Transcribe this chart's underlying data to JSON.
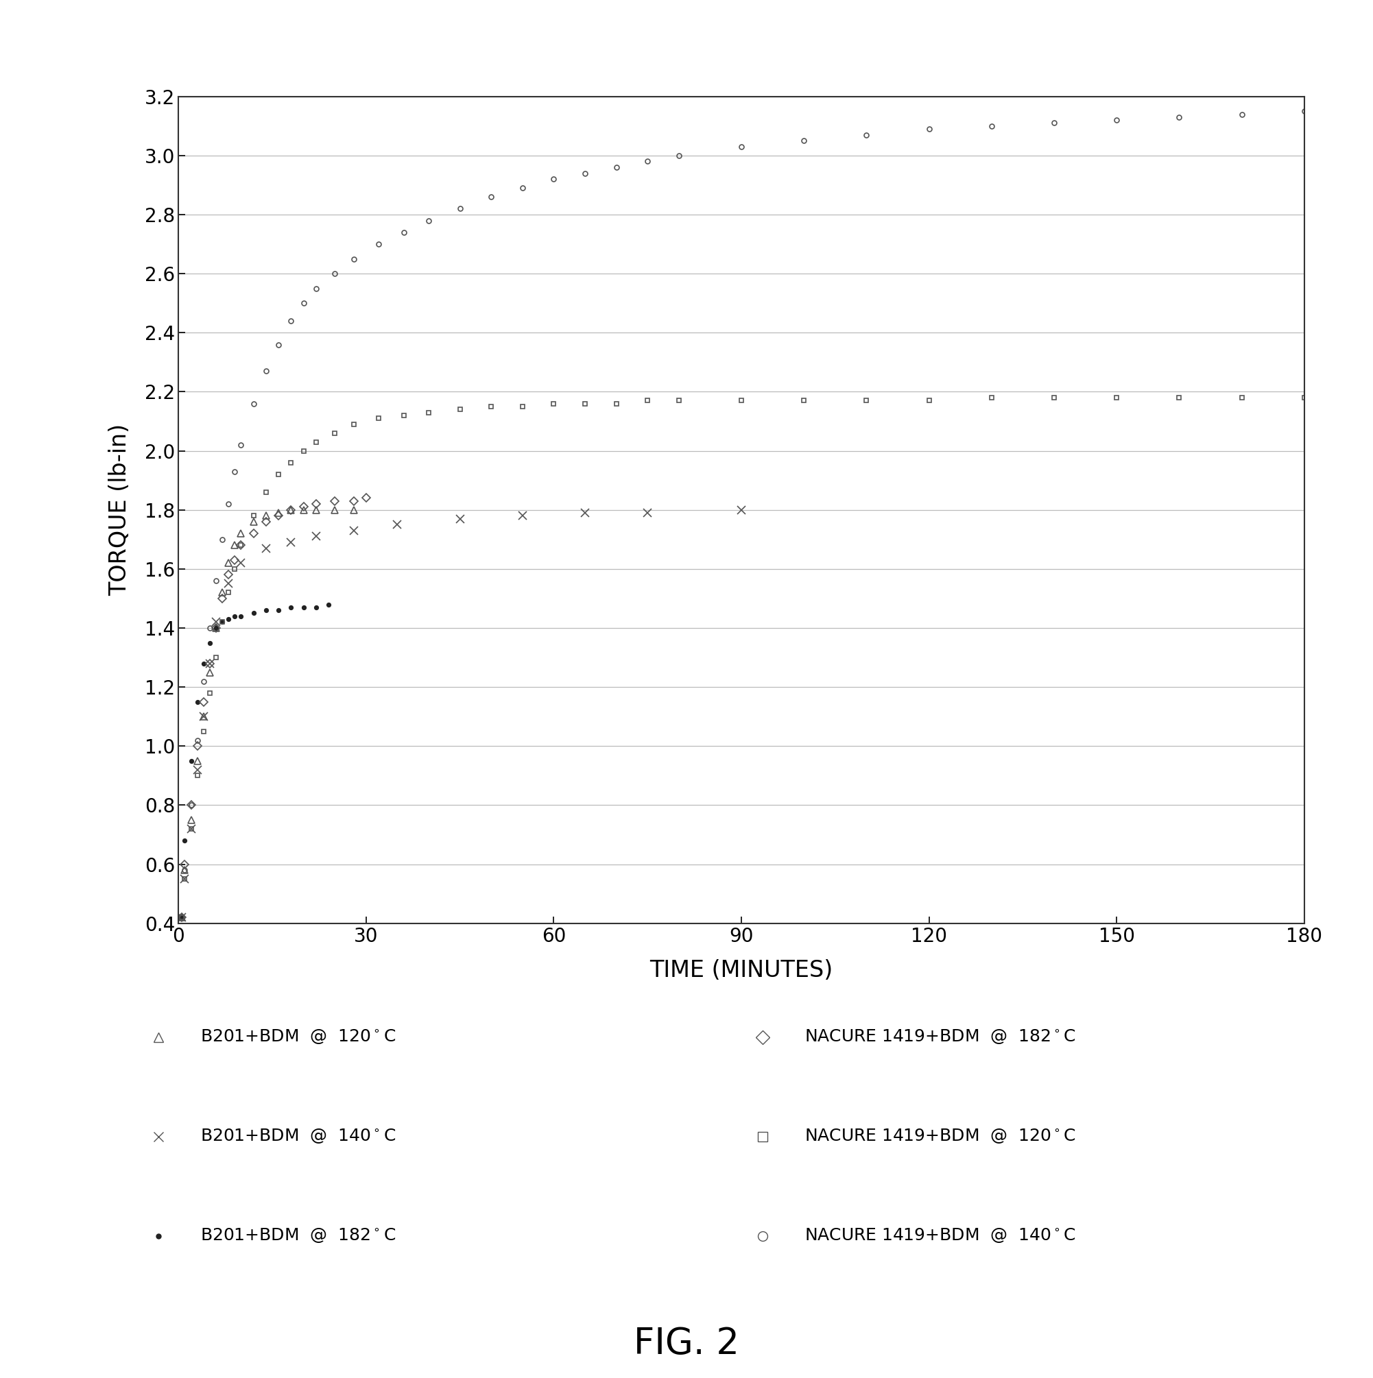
{
  "title": "FIG. 2",
  "xlabel": "TIME (MINUTES)",
  "ylabel": "TORQUE (lb-in)",
  "xlim": [
    0,
    180
  ],
  "ylim": [
    0.4,
    3.2
  ],
  "yticks": [
    0.4,
    0.6,
    0.8,
    1.0,
    1.2,
    1.4,
    1.6,
    1.8,
    2.0,
    2.2,
    2.4,
    2.6,
    2.8,
    3.0,
    3.2
  ],
  "xticks": [
    0,
    30,
    60,
    90,
    120,
    150,
    180
  ],
  "background_color": "#ffffff",
  "grid_color": "#bbbbbb",
  "series": [
    {
      "label": "B201+BDM  @  120°C",
      "marker": "^",
      "color": "#555555",
      "markersize": 7,
      "markerfacecolor": "none",
      "x": [
        0.5,
        1,
        2,
        3,
        4,
        5,
        6,
        7,
        8,
        9,
        10,
        12,
        14,
        16,
        18,
        20,
        22,
        25,
        28
      ],
      "y": [
        0.42,
        0.58,
        0.75,
        0.95,
        1.1,
        1.25,
        1.4,
        1.52,
        1.62,
        1.68,
        1.72,
        1.76,
        1.78,
        1.79,
        1.8,
        1.8,
        1.8,
        1.8,
        1.8
      ]
    },
    {
      "label": "B201+BDM  @  140°C",
      "marker": "x",
      "color": "#555555",
      "markersize": 8,
      "markerfacecolor": "#555555",
      "x": [
        0.5,
        1,
        2,
        3,
        4,
        5,
        6,
        8,
        10,
        14,
        18,
        22,
        28,
        35,
        45,
        55,
        65,
        75,
        90
      ],
      "y": [
        0.42,
        0.55,
        0.72,
        0.92,
        1.1,
        1.28,
        1.42,
        1.55,
        1.62,
        1.67,
        1.69,
        1.71,
        1.73,
        1.75,
        1.77,
        1.78,
        1.79,
        1.79,
        1.8
      ]
    },
    {
      "label": "B201+BDM  @  182°C",
      "marker": ".",
      "color": "#222222",
      "markersize": 8,
      "markerfacecolor": "#222222",
      "x": [
        0.5,
        1,
        2,
        3,
        4,
        5,
        6,
        7,
        8,
        9,
        10,
        12,
        14,
        16,
        18,
        20,
        22,
        24
      ],
      "y": [
        0.42,
        0.68,
        0.95,
        1.15,
        1.28,
        1.35,
        1.4,
        1.42,
        1.43,
        1.44,
        1.44,
        1.45,
        1.46,
        1.46,
        1.47,
        1.47,
        1.47,
        1.48
      ]
    },
    {
      "label": "NACURE 1419+BDM  @  182°C",
      "marker": "D",
      "color": "#555555",
      "markersize": 6,
      "markerfacecolor": "none",
      "x": [
        0.5,
        1,
        2,
        3,
        4,
        5,
        6,
        7,
        8,
        9,
        10,
        12,
        14,
        16,
        18,
        20,
        22,
        25,
        28,
        30
      ],
      "y": [
        0.42,
        0.6,
        0.8,
        1.0,
        1.15,
        1.28,
        1.4,
        1.5,
        1.58,
        1.63,
        1.68,
        1.72,
        1.76,
        1.78,
        1.8,
        1.81,
        1.82,
        1.83,
        1.83,
        1.84
      ]
    },
    {
      "label": "NACURE 1419+BDM  @  120°C",
      "marker": "s",
      "color": "#555555",
      "markersize": 5,
      "markerfacecolor": "none",
      "x": [
        0.5,
        1,
        2,
        3,
        4,
        5,
        6,
        7,
        8,
        9,
        10,
        12,
        14,
        16,
        18,
        20,
        22,
        25,
        28,
        32,
        36,
        40,
        45,
        50,
        55,
        60,
        65,
        70,
        75,
        80,
        90,
        100,
        110,
        120,
        130,
        140,
        150,
        160,
        170,
        180
      ],
      "y": [
        0.42,
        0.55,
        0.72,
        0.9,
        1.05,
        1.18,
        1.3,
        1.42,
        1.52,
        1.6,
        1.68,
        1.78,
        1.86,
        1.92,
        1.96,
        2.0,
        2.03,
        2.06,
        2.09,
        2.11,
        2.12,
        2.13,
        2.14,
        2.15,
        2.15,
        2.16,
        2.16,
        2.16,
        2.17,
        2.17,
        2.17,
        2.17,
        2.17,
        2.17,
        2.18,
        2.18,
        2.18,
        2.18,
        2.18,
        2.18
      ]
    },
    {
      "label": "NACURE 1419+BDM  @  140°C",
      "marker": "o",
      "color": "#555555",
      "markersize": 5,
      "markerfacecolor": "none",
      "x": [
        0.5,
        1,
        2,
        3,
        4,
        5,
        6,
        7,
        8,
        9,
        10,
        12,
        14,
        16,
        18,
        20,
        22,
        25,
        28,
        32,
        36,
        40,
        45,
        50,
        55,
        60,
        65,
        70,
        75,
        80,
        90,
        100,
        110,
        120,
        130,
        140,
        150,
        160,
        170,
        180
      ],
      "y": [
        0.42,
        0.58,
        0.8,
        1.02,
        1.22,
        1.4,
        1.56,
        1.7,
        1.82,
        1.93,
        2.02,
        2.16,
        2.27,
        2.36,
        2.44,
        2.5,
        2.55,
        2.6,
        2.65,
        2.7,
        2.74,
        2.78,
        2.82,
        2.86,
        2.89,
        2.92,
        2.94,
        2.96,
        2.98,
        3.0,
        3.03,
        3.05,
        3.07,
        3.09,
        3.1,
        3.11,
        3.12,
        3.13,
        3.14,
        3.15
      ]
    }
  ]
}
